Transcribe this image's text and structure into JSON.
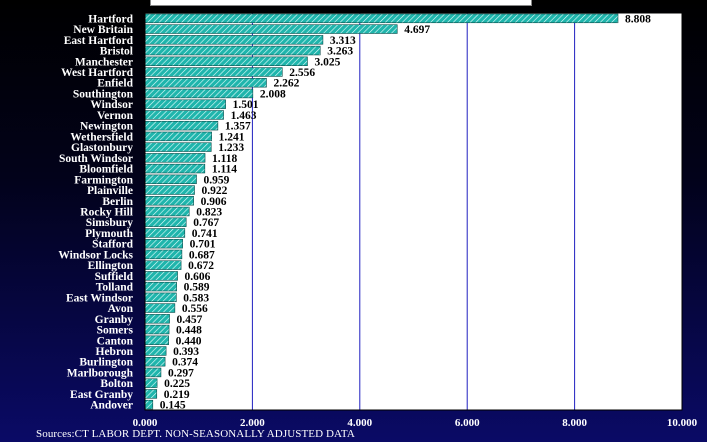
{
  "chart_data": {
    "type": "bar",
    "orientation": "horizontal",
    "categories": [
      "Hartford",
      "New Britain",
      "East Hartford",
      "Bristol",
      "Manchester",
      "West Hartford",
      "Enfield",
      "Southington",
      "Windsor",
      "Vernon",
      "Newington",
      "Wethersfield",
      "Glastonbury",
      "South Windsor",
      "Bloomfield",
      "Farmington",
      "Plainville",
      "Berlin",
      "Rocky Hill",
      "Simsbury",
      "Plymouth",
      "Stafford",
      "Windsor Locks",
      "Ellington",
      "Suffield",
      "Tolland",
      "East Windsor",
      "Avon",
      "Granby",
      "Somers",
      "Canton",
      "Hebron",
      "Burlington",
      "Marlborough",
      "Bolton",
      "East Granby",
      "Andover"
    ],
    "values": [
      8.808,
      4.697,
      3.313,
      3.263,
      3.025,
      2.556,
      2.262,
      2.008,
      1.501,
      1.463,
      1.357,
      1.241,
      1.233,
      1.118,
      1.114,
      0.959,
      0.922,
      0.906,
      0.823,
      0.767,
      0.741,
      0.701,
      0.687,
      0.672,
      0.606,
      0.589,
      0.583,
      0.556,
      0.457,
      0.448,
      0.44,
      0.393,
      0.374,
      0.297,
      0.225,
      0.219,
      0.145
    ],
    "value_labels": [
      "8.808",
      "4.697",
      "3.313",
      "3.263",
      "3.025",
      "2.556",
      "2.262",
      "2.008",
      "1.501",
      "1.463",
      "1.357",
      "1.241",
      "1.233",
      "1.118",
      "1.114",
      "0.959",
      "0.922",
      "0.906",
      "0.823",
      "0.767",
      "0.741",
      "0.701",
      "0.687",
      "0.672",
      "0.606",
      "0.589",
      "0.583",
      "0.556",
      "0.457",
      "0.448",
      "0.440",
      "0.393",
      "0.374",
      "0.297",
      "0.225",
      "0.219",
      "0.145"
    ],
    "xlim": [
      0,
      10
    ],
    "x_ticks": [
      0,
      2,
      4,
      6,
      8,
      10
    ],
    "x_tick_labels": [
      "0.000",
      "2.000",
      "4.000",
      "6.000",
      "8.000",
      "10.000"
    ],
    "grid": "vertical",
    "title": "",
    "xlabel": "",
    "ylabel": ""
  },
  "source_note": "Sources:CT LABOR DEPT. NON-SEASONALLY ADJUSTED DATA",
  "colors": {
    "bar_fill": "#1fb5ac",
    "bar_hatch": "#e8ffff",
    "plot_bg": "#ffffff",
    "grid": "#2020c0",
    "label_text": "#ffffff",
    "value_text": "#000000",
    "page_bg": "#0a0a66"
  }
}
